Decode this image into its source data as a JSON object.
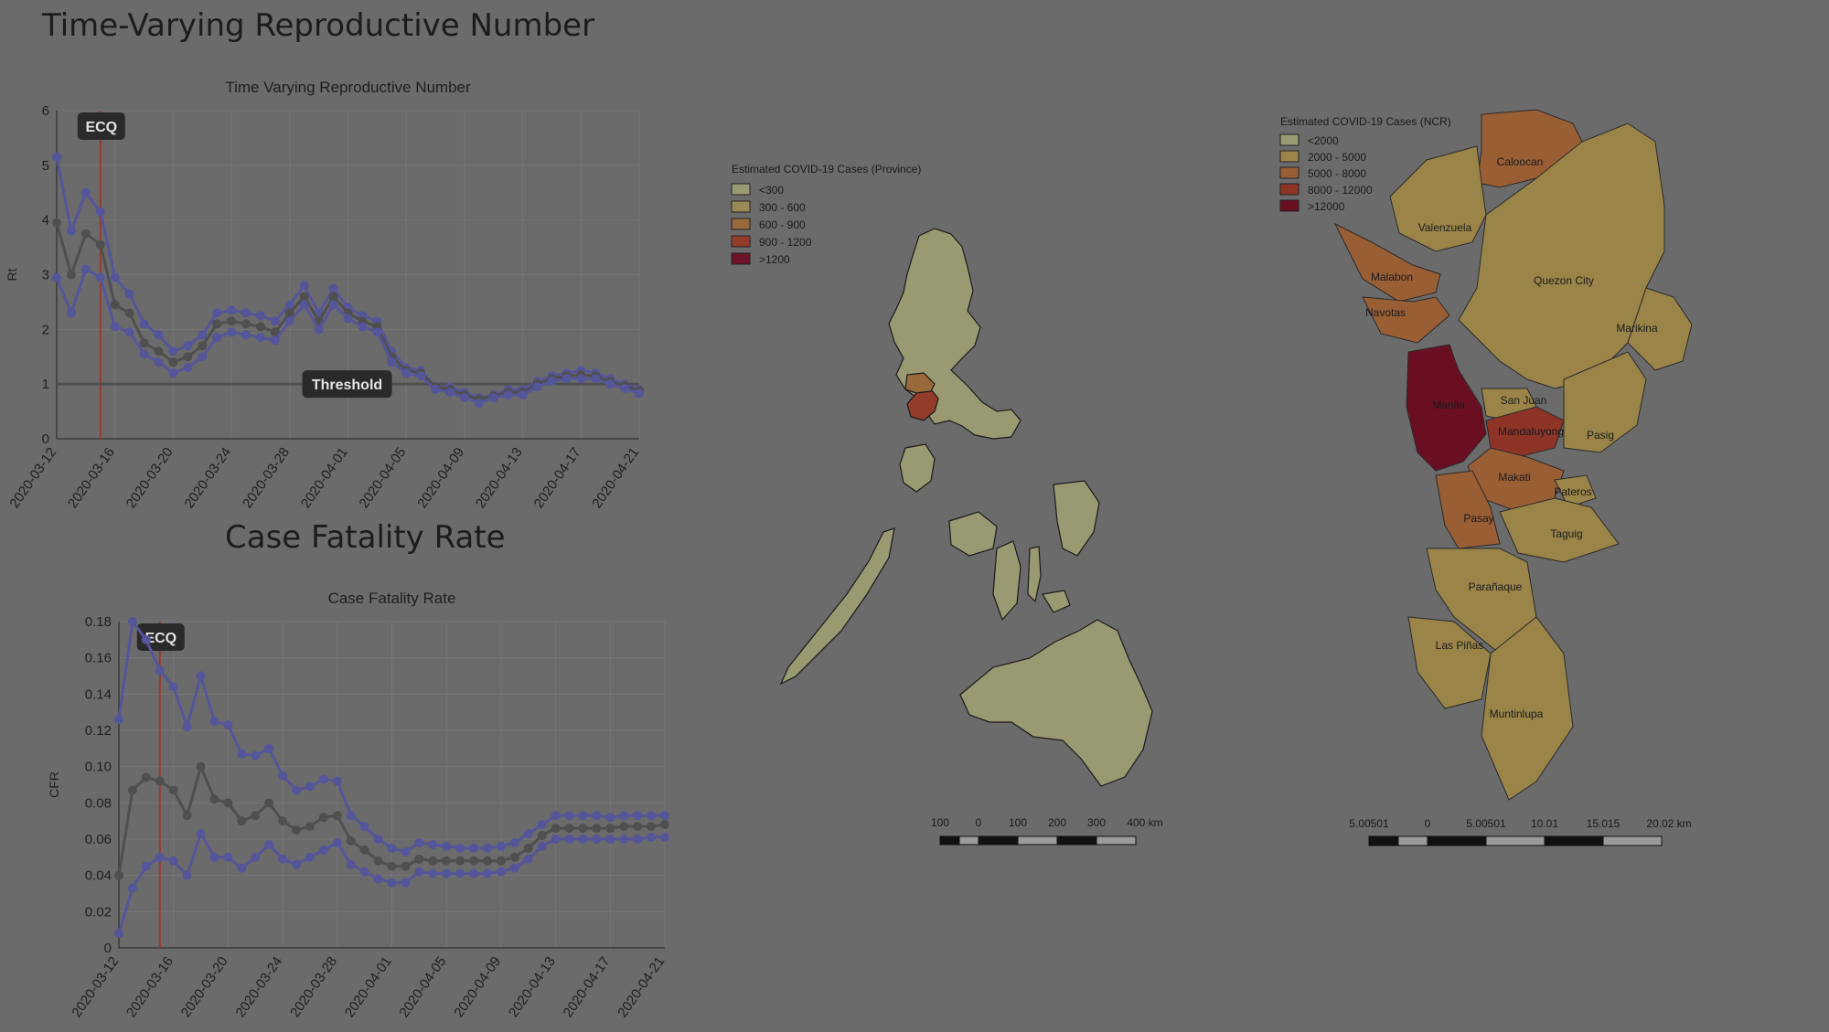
{
  "page": {
    "rt_section_title": "Time-Varying Reproductive Number",
    "cfr_section_title": "Case Fatality Rate"
  },
  "colors": {
    "background": "#6b6b6b",
    "line_main": "#4f4f4f",
    "line_bounds": "#55559a",
    "ecq_line": "#9a3a2e",
    "threshold_line": "#505050",
    "badge_bg": "#2a2a2a",
    "badge_text": "#e4e4e4"
  },
  "chart_data": [
    {
      "type": "line",
      "title": "Time Varying Reproductive Number",
      "xlabel": "",
      "ylabel": "Rt",
      "ylim": [
        0,
        6
      ],
      "yticks": [
        0,
        1,
        2,
        3,
        4,
        5,
        6
      ],
      "x_tick_labels": [
        "2020-03-12",
        "2020-03-16",
        "2020-03-20",
        "2020-03-24",
        "2020-03-28",
        "2020-04-01",
        "2020-04-05",
        "2020-04-09",
        "2020-04-13",
        "2020-04-17",
        "2020-04-21"
      ],
      "x": [
        "2020-03-12",
        "2020-03-13",
        "2020-03-14",
        "2020-03-15",
        "2020-03-16",
        "2020-03-17",
        "2020-03-18",
        "2020-03-19",
        "2020-03-20",
        "2020-03-21",
        "2020-03-22",
        "2020-03-23",
        "2020-03-24",
        "2020-03-25",
        "2020-03-26",
        "2020-03-27",
        "2020-03-28",
        "2020-03-29",
        "2020-03-30",
        "2020-03-31",
        "2020-04-01",
        "2020-04-02",
        "2020-04-03",
        "2020-04-04",
        "2020-04-05",
        "2020-04-06",
        "2020-04-07",
        "2020-04-08",
        "2020-04-09",
        "2020-04-10",
        "2020-04-11",
        "2020-04-12",
        "2020-04-13",
        "2020-04-14",
        "2020-04-15",
        "2020-04-16",
        "2020-04-17",
        "2020-04-18",
        "2020-04-19",
        "2020-04-20",
        "2020-04-21"
      ],
      "series": [
        {
          "role": "upper",
          "values": [
            5.15,
            3.8,
            4.5,
            4.15,
            2.95,
            2.65,
            2.1,
            1.9,
            1.6,
            1.7,
            1.9,
            2.3,
            2.35,
            2.3,
            2.25,
            2.15,
            2.45,
            2.8,
            2.3,
            2.75,
            2.4,
            2.25,
            2.15,
            1.6,
            1.3,
            1.25,
            0.95,
            0.95,
            0.85,
            0.75,
            0.8,
            0.9,
            0.9,
            1.05,
            1.15,
            1.2,
            1.25,
            1.2,
            1.1,
            1.0,
            0.9
          ]
        },
        {
          "role": "estimate",
          "values": [
            3.95,
            3.0,
            3.75,
            3.55,
            2.45,
            2.3,
            1.75,
            1.6,
            1.4,
            1.5,
            1.7,
            2.1,
            2.15,
            2.1,
            2.05,
            1.95,
            2.3,
            2.6,
            2.15,
            2.6,
            2.3,
            2.15,
            2.05,
            1.5,
            1.25,
            1.2,
            0.95,
            0.9,
            0.8,
            0.72,
            0.78,
            0.85,
            0.85,
            1.0,
            1.1,
            1.15,
            1.17,
            1.15,
            1.05,
            0.97,
            0.88
          ]
        },
        {
          "role": "lower",
          "values": [
            2.95,
            2.3,
            3.1,
            2.95,
            2.05,
            1.95,
            1.55,
            1.4,
            1.2,
            1.3,
            1.5,
            1.85,
            1.95,
            1.9,
            1.85,
            1.8,
            2.15,
            2.45,
            2.0,
            2.45,
            2.2,
            2.05,
            1.95,
            1.4,
            1.2,
            1.15,
            0.9,
            0.85,
            0.75,
            0.65,
            0.75,
            0.8,
            0.8,
            0.95,
            1.05,
            1.1,
            1.1,
            1.1,
            1.0,
            0.92,
            0.83
          ]
        }
      ],
      "annotations": [
        {
          "label": "ECQ",
          "x": "2020-03-15",
          "kind": "vertical-line"
        },
        {
          "label": "Threshold",
          "y": 1,
          "kind": "horizontal-line"
        }
      ],
      "grid": true
    },
    {
      "type": "line",
      "title": "Case Fatality Rate",
      "xlabel": "",
      "ylabel": "CFR",
      "ylim": [
        0,
        0.18
      ],
      "yticks": [
        0,
        0.02,
        0.04,
        0.06,
        0.08,
        0.1,
        0.12,
        0.14,
        0.16,
        0.18
      ],
      "ytick_labels": [
        "0",
        "0.02",
        "0.04",
        "0.06",
        "0.08",
        "0.10",
        "0.12",
        "0.14",
        "0.16",
        "0.18"
      ],
      "x_tick_labels": [
        "2020-03-12",
        "2020-03-16",
        "2020-03-20",
        "2020-03-24",
        "2020-03-28",
        "2020-04-01",
        "2020-04-05",
        "2020-04-09",
        "2020-04-13",
        "2020-04-17",
        "2020-04-21"
      ],
      "x": [
        "2020-03-12",
        "2020-03-13",
        "2020-03-14",
        "2020-03-15",
        "2020-03-16",
        "2020-03-17",
        "2020-03-18",
        "2020-03-19",
        "2020-03-20",
        "2020-03-21",
        "2020-03-22",
        "2020-03-23",
        "2020-03-24",
        "2020-03-25",
        "2020-03-26",
        "2020-03-27",
        "2020-03-28",
        "2020-03-29",
        "2020-03-30",
        "2020-03-31",
        "2020-04-01",
        "2020-04-02",
        "2020-04-03",
        "2020-04-04",
        "2020-04-05",
        "2020-04-06",
        "2020-04-07",
        "2020-04-08",
        "2020-04-09",
        "2020-04-10",
        "2020-04-11",
        "2020-04-12",
        "2020-04-13",
        "2020-04-14",
        "2020-04-15",
        "2020-04-16",
        "2020-04-17",
        "2020-04-18",
        "2020-04-19",
        "2020-04-20",
        "2020-04-21"
      ],
      "series": [
        {
          "role": "upper",
          "values": [
            0.126,
            0.18,
            0.17,
            0.153,
            0.144,
            0.122,
            0.15,
            0.125,
            0.123,
            0.107,
            0.106,
            0.11,
            0.095,
            0.087,
            0.089,
            0.093,
            0.092,
            0.073,
            0.067,
            0.06,
            0.055,
            0.053,
            0.058,
            0.057,
            0.056,
            0.055,
            0.055,
            0.055,
            0.056,
            0.058,
            0.063,
            0.068,
            0.073,
            0.073,
            0.073,
            0.073,
            0.072,
            0.073,
            0.073,
            0.073,
            0.073
          ]
        },
        {
          "role": "estimate",
          "values": [
            0.04,
            0.087,
            0.094,
            0.092,
            0.087,
            0.073,
            0.1,
            0.082,
            0.08,
            0.07,
            0.073,
            0.08,
            0.07,
            0.065,
            0.067,
            0.072,
            0.073,
            0.059,
            0.054,
            0.048,
            0.045,
            0.045,
            0.049,
            0.048,
            0.048,
            0.048,
            0.048,
            0.048,
            0.048,
            0.05,
            0.055,
            0.062,
            0.066,
            0.066,
            0.066,
            0.066,
            0.066,
            0.067,
            0.067,
            0.067,
            0.068
          ]
        },
        {
          "role": "lower",
          "values": [
            0.008,
            0.033,
            0.045,
            0.05,
            0.048,
            0.04,
            0.063,
            0.05,
            0.05,
            0.044,
            0.05,
            0.057,
            0.049,
            0.046,
            0.05,
            0.054,
            0.058,
            0.046,
            0.042,
            0.038,
            0.036,
            0.036,
            0.042,
            0.041,
            0.041,
            0.041,
            0.041,
            0.041,
            0.042,
            0.044,
            0.049,
            0.056,
            0.06,
            0.06,
            0.06,
            0.06,
            0.06,
            0.06,
            0.06,
            0.061,
            0.061
          ]
        }
      ],
      "annotations": [
        {
          "label": "ECQ",
          "x": "2020-03-15",
          "kind": "vertical-line"
        }
      ],
      "grid": true
    }
  ],
  "province_map": {
    "legend_title": "Estimated COVID-19 Cases (Province)",
    "legend": [
      {
        "label": "<300",
        "color": "#9a9a72"
      },
      {
        "label": "300 - 600",
        "color": "#9a8a55"
      },
      {
        "label": "600 - 900",
        "color": "#9a6a3c"
      },
      {
        "label": "900 - 1200",
        "color": "#943c2a"
      },
      {
        "label": ">1200",
        "color": "#6e1228"
      }
    ],
    "scale_labels": [
      "100",
      "0",
      "100",
      "200",
      "300",
      "400 km"
    ]
  },
  "ncr_map": {
    "legend_title": "Estimated COVID-19 Cases (NCR)",
    "legend": [
      {
        "label": "<2000",
        "color": "#9a9a72"
      },
      {
        "label": "2000 - 5000",
        "color": "#9a8448"
      },
      {
        "label": "5000 - 8000",
        "color": "#9a5e35"
      },
      {
        "label": "8000 - 12000",
        "color": "#8e3426"
      },
      {
        "label": ">12000",
        "color": "#6a0f22"
      }
    ],
    "cities": [
      {
        "name": "Caloocan",
        "band": 2
      },
      {
        "name": "Valenzuela",
        "band": 1
      },
      {
        "name": "Malabon",
        "band": 2
      },
      {
        "name": "Navotas",
        "band": 2
      },
      {
        "name": "Quezon City",
        "band": 1
      },
      {
        "name": "Marikina",
        "band": 1
      },
      {
        "name": "San Juan",
        "band": 1
      },
      {
        "name": "Manila",
        "band": 4
      },
      {
        "name": "Mandaluyong",
        "band": 3
      },
      {
        "name": "Pasig",
        "band": 1
      },
      {
        "name": "Makati",
        "band": 2
      },
      {
        "name": "Pateros",
        "band": 1
      },
      {
        "name": "Pasay",
        "band": 2
      },
      {
        "name": "Taguig",
        "band": 1
      },
      {
        "name": "Parañaque",
        "band": 1
      },
      {
        "name": "Las Piñas",
        "band": 1
      },
      {
        "name": "Muntinlupa",
        "band": 1
      }
    ],
    "scale_labels": [
      "5.00501",
      "0",
      "5.00501",
      "10.01",
      "15.015",
      "20.02 km"
    ]
  }
}
